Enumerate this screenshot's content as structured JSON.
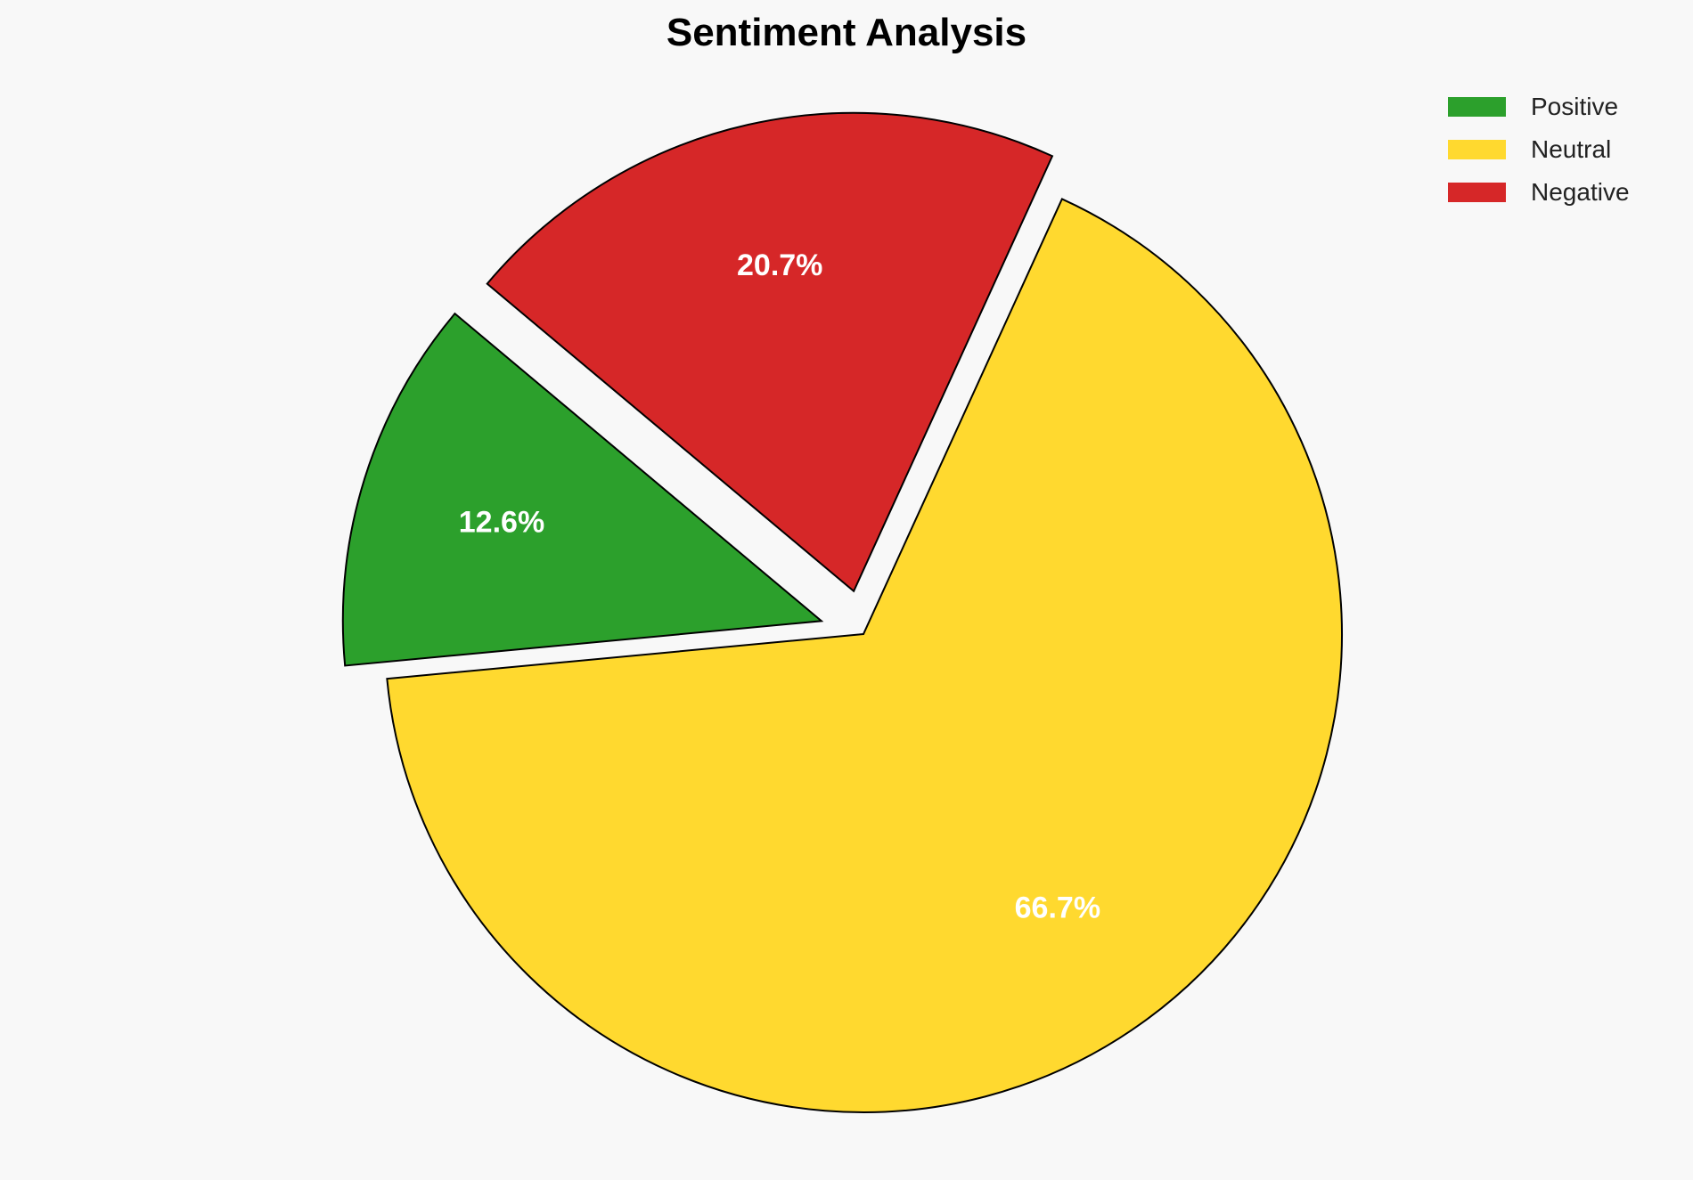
{
  "chart_data": {
    "type": "pie",
    "title": "Sentiment Analysis",
    "categories": [
      "Positive",
      "Neutral",
      "Negative"
    ],
    "values": [
      12.6,
      66.7,
      20.7
    ],
    "labels": [
      "12.6%",
      "66.7%",
      "20.7%"
    ],
    "colors": [
      "#2ca02c",
      "#ffd92f",
      "#d62728"
    ],
    "explode": [
      0.1,
      0,
      0.1
    ],
    "start_angle": 140,
    "direction": "counterclockwise",
    "legend_placement": "top-right",
    "edge_color": "#000000"
  }
}
